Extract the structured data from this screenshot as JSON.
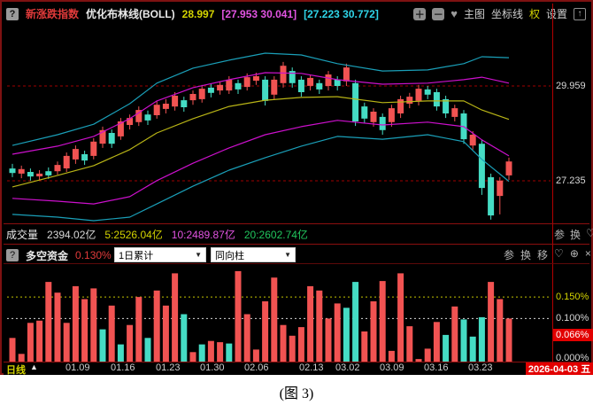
{
  "title_bar": {
    "help_icon": "?",
    "symbol": "新涨跌指数",
    "indicator": "优化布林线(BOLL)",
    "mid_value": "28.997",
    "band1": "[27.953 30.041]",
    "band2": "[27.223 30.772]",
    "tools": {
      "zoom_in": "＋",
      "zoom_out": "－",
      "favorite": "♥",
      "main_chart": "主图",
      "coordinate_lines": "坐标线",
      "rights": "权",
      "settings": "设置",
      "expand": "↑"
    }
  },
  "volume_row": {
    "label": "成交量",
    "value": "2394.02亿",
    "ma5": "5:2526.04亿",
    "ma10": "10:2489.87亿",
    "ma20": "20:2602.74亿",
    "icons": {
      "params": "参",
      "switch": "换",
      "favorite": "♡",
      "magnify": "⊙"
    }
  },
  "funds_row": {
    "help_icon": "?",
    "label": "多空资金",
    "value": "0.130%",
    "dropdown1": "1日累计",
    "dropdown2": "同向柱",
    "caret": "▼",
    "icons": {
      "params": "参",
      "switch": "换",
      "move": "移",
      "favorite": "♡",
      "magnify": "⊕",
      "close": "×"
    }
  },
  "right_axis": {
    "price_high": "29.959",
    "price_low": "27.235",
    "funds_150": "0.150%",
    "funds_100": "0.100%",
    "funds_current": "0.066%",
    "funds_zero": "0.000%"
  },
  "bottom_axis": {
    "period": "日线",
    "arrow": "▲",
    "dates": [
      "01.09",
      "01.16",
      "01.23",
      "01.30",
      "02.06",
      "02.13",
      "03.02",
      "03.09",
      "03.16",
      "03.23"
    ],
    "date_box": "2026-04-03 五"
  },
  "caption": "(图 3)",
  "colors": {
    "up": "#f15352",
    "down": "#45dcc4",
    "band_cyan": "#1a9fb8",
    "band_magenta": "#cc10cc",
    "band_mid": "#b8b416",
    "dashed_price": "#a00000",
    "grid_yellow": "#c6c600",
    "grid_white": "#d8d8d8"
  },
  "chart_data": [
    {
      "type": "candlestick",
      "title": "新涨跌指数 优化布林线(BOLL)",
      "boll": {
        "mid": 28.997,
        "magenta_band": [
          27.953,
          30.041
        ],
        "cyan_band": [
          27.223,
          30.772
        ]
      },
      "price_axis_labels": [
        29.959,
        27.235
      ],
      "ylim": [
        26.05,
        31.65
      ],
      "candles": [
        [
          27.59,
          27.46,
          27.72,
          27.34
        ],
        [
          27.44,
          27.57,
          27.67,
          27.31
        ],
        [
          27.49,
          27.36,
          27.59,
          27.24
        ],
        [
          27.36,
          27.44,
          27.54,
          27.26
        ],
        [
          27.51,
          27.39,
          27.62,
          27.29
        ],
        [
          27.51,
          27.69,
          27.79,
          27.41
        ],
        [
          27.59,
          27.95,
          28.05,
          27.49
        ],
        [
          27.85,
          28.15,
          28.25,
          27.72
        ],
        [
          28.0,
          27.82,
          28.1,
          27.69
        ],
        [
          27.95,
          28.36,
          28.46,
          27.85
        ],
        [
          28.3,
          28.69,
          28.79,
          28.18
        ],
        [
          28.61,
          28.3,
          28.71,
          28.18
        ],
        [
          28.51,
          28.94,
          29.04,
          28.41
        ],
        [
          28.84,
          29.04,
          29.14,
          28.71
        ],
        [
          28.92,
          29.27,
          29.37,
          28.81
        ],
        [
          29.14,
          28.97,
          29.25,
          28.84
        ],
        [
          29.12,
          29.42,
          29.53,
          29.02
        ],
        [
          29.3,
          29.45,
          29.58,
          29.17
        ],
        [
          29.37,
          29.68,
          29.78,
          29.25
        ],
        [
          29.55,
          29.35,
          29.65,
          29.22
        ],
        [
          29.55,
          29.73,
          29.83,
          29.42
        ],
        [
          29.58,
          29.88,
          29.99,
          29.48
        ],
        [
          29.91,
          29.76,
          30.01,
          29.63
        ],
        [
          29.83,
          29.99,
          30.09,
          29.71
        ],
        [
          29.83,
          30.14,
          30.24,
          29.73
        ],
        [
          30.04,
          29.86,
          30.14,
          29.73
        ],
        [
          29.93,
          30.21,
          30.32,
          29.83
        ],
        [
          30.11,
          30.24,
          30.34,
          29.99
        ],
        [
          30.14,
          29.53,
          30.24,
          29.4
        ],
        [
          29.71,
          30.14,
          30.24,
          29.58
        ],
        [
          30.04,
          30.54,
          30.65,
          29.91
        ],
        [
          30.39,
          30.04,
          30.49,
          29.91
        ],
        [
          30.14,
          29.78,
          30.24,
          29.65
        ],
        [
          29.96,
          30.19,
          30.29,
          29.83
        ],
        [
          30.04,
          29.86,
          30.14,
          29.73
        ],
        [
          29.96,
          30.29,
          30.39,
          29.83
        ],
        [
          30.14,
          29.96,
          30.24,
          29.83
        ],
        [
          30.09,
          30.49,
          30.6,
          29.96
        ],
        [
          30.04,
          28.94,
          30.14,
          28.81
        ],
        [
          29.37,
          29.02,
          29.48,
          28.89
        ],
        [
          28.92,
          29.22,
          29.32,
          28.79
        ],
        [
          29.07,
          28.69,
          29.17,
          28.56
        ],
        [
          28.92,
          29.32,
          29.42,
          28.79
        ],
        [
          29.17,
          29.58,
          29.68,
          29.04
        ],
        [
          29.45,
          29.65,
          29.76,
          29.32
        ],
        [
          29.53,
          29.88,
          29.99,
          29.4
        ],
        [
          29.86,
          29.71,
          29.96,
          29.58
        ],
        [
          29.78,
          29.37,
          29.88,
          29.25
        ],
        [
          29.58,
          29.17,
          29.68,
          29.04
        ],
        [
          29.07,
          29.32,
          29.42,
          28.94
        ],
        [
          29.17,
          28.43,
          29.27,
          28.3
        ],
        [
          28.25,
          28.56,
          28.66,
          28.13
        ],
        [
          28.3,
          27.03,
          28.41,
          26.83
        ],
        [
          27.34,
          26.24,
          27.44,
          26.12
        ],
        [
          26.8,
          27.24,
          27.34,
          26.27
        ],
        [
          27.39,
          27.79,
          27.9,
          27.26
        ]
      ],
      "bands": {
        "x_index": [
          0,
          5,
          9,
          13,
          16,
          20,
          24,
          28,
          32,
          36,
          41,
          46,
          50,
          52,
          55
        ],
        "cyan_upper": [
          28.25,
          28.56,
          28.86,
          29.45,
          30.04,
          30.47,
          30.7,
          30.9,
          30.85,
          30.6,
          30.39,
          30.42,
          30.6,
          30.8,
          30.77
        ],
        "magenta_upper": [
          28.0,
          28.23,
          28.51,
          29.02,
          29.53,
          29.91,
          30.14,
          30.34,
          30.32,
          30.14,
          30.01,
          30.04,
          30.14,
          30.21,
          30.04
        ],
        "mid": [
          27.06,
          27.39,
          27.67,
          28.13,
          28.61,
          29.02,
          29.37,
          29.55,
          29.63,
          29.65,
          29.48,
          29.53,
          29.53,
          29.27,
          29.0
        ],
        "magenta_lower": [
          26.73,
          26.65,
          26.57,
          26.78,
          27.24,
          27.74,
          28.18,
          28.56,
          28.79,
          28.97,
          28.84,
          28.92,
          28.79,
          28.41,
          27.95
        ],
        "cyan_lower": [
          26.27,
          26.19,
          26.09,
          26.19,
          26.57,
          27.08,
          27.54,
          27.9,
          28.23,
          28.51,
          28.43,
          28.56,
          28.36,
          27.85,
          27.22
        ]
      }
    },
    {
      "type": "bar",
      "title": "多空资金 (1日累计, 同向柱)",
      "unit": "%",
      "ylim": [
        0,
        0.23
      ],
      "gridlines": [
        {
          "value": 0.15,
          "style": "yellow-dashed"
        },
        {
          "value": 0.1,
          "style": "white-dashed"
        }
      ],
      "current_value": 0.066,
      "values": [
        0.055,
        0.018,
        0.09,
        0.095,
        0.185,
        0.16,
        0.09,
        0.175,
        0.145,
        0.17,
        0.075,
        0.13,
        0.04,
        0.085,
        0.15,
        0.055,
        0.165,
        0.13,
        0.205,
        0.11,
        0.022,
        0.04,
        0.048,
        0.045,
        0.042,
        0.21,
        0.11,
        0.028,
        0.14,
        0.195,
        0.085,
        0.06,
        0.08,
        0.175,
        0.165,
        0.1,
        0.135,
        0.125,
        0.185,
        0.07,
        0.14,
        0.187,
        0.025,
        0.205,
        0.082,
        0.006,
        0.03,
        0.092,
        0.062,
        0.128,
        0.098,
        0.058,
        0.103,
        0.185,
        0.145,
        0.1
      ],
      "colors": [
        "r",
        "r",
        "r",
        "r",
        "r",
        "r",
        "r",
        "r",
        "r",
        "r",
        "t",
        "r",
        "t",
        "r",
        "r",
        "t",
        "r",
        "r",
        "r",
        "t",
        "r",
        "t",
        "r",
        "r",
        "t",
        "r",
        "r",
        "r",
        "r",
        "r",
        "r",
        "r",
        "r",
        "r",
        "r",
        "r",
        "r",
        "t",
        "t",
        "r",
        "r",
        "r",
        "r",
        "r",
        "r",
        "r",
        "r",
        "r",
        "t",
        "r",
        "t",
        "t",
        "t",
        "r",
        "r",
        "r"
      ]
    }
  ]
}
